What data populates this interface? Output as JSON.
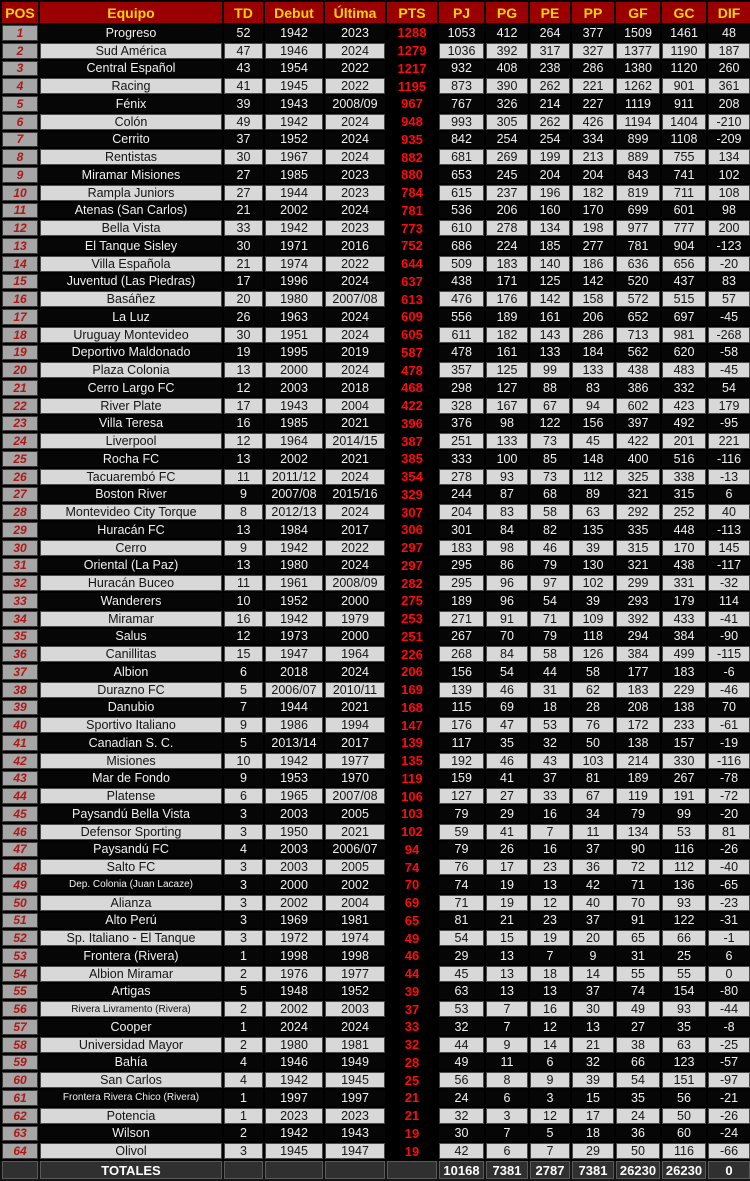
{
  "colors": {
    "header_bg": "#9B0000",
    "header_text": "#FFD400",
    "pos_bg": "#A6A6A6",
    "pos_text": "#B01818",
    "row_odd_bg": "#060606",
    "row_odd_text": "#F2F2F2",
    "row_even_bg": "#D8D8D8",
    "row_even_text": "#141414",
    "pts_bg": "#000000",
    "pts_text": "#FF0B0B",
    "totals_row_bg": "#141414",
    "totals_cell_bg": "#303030",
    "totals_text": "#FFFFFF"
  },
  "chart_data": {
    "type": "table",
    "columns": [
      {
        "key": "pos",
        "label": "POS",
        "width": 38
      },
      {
        "key": "equipo",
        "label": "Equipo",
        "width": 184
      },
      {
        "key": "td",
        "label": "TD",
        "width": 41
      },
      {
        "key": "debut",
        "label": "Debut",
        "width": 60
      },
      {
        "key": "ultima",
        "label": "Última",
        "width": 62
      },
      {
        "key": "pts",
        "label": "PTS",
        "width": 52
      },
      {
        "key": "pj",
        "label": "PJ",
        "width": 47
      },
      {
        "key": "pg",
        "label": "PG",
        "width": 44
      },
      {
        "key": "pe",
        "label": "PE",
        "width": 42
      },
      {
        "key": "pp",
        "label": "PP",
        "width": 44
      },
      {
        "key": "gf",
        "label": "GF",
        "width": 46
      },
      {
        "key": "gc",
        "label": "GC",
        "width": 46
      },
      {
        "key": "dif",
        "label": "DIF",
        "width": 44
      }
    ],
    "rows": [
      [
        "1",
        "Progreso",
        "52",
        "1942",
        "2023",
        "1288",
        "1053",
        "412",
        "264",
        "377",
        "1509",
        "1461",
        "48"
      ],
      [
        "2",
        "Sud América",
        "47",
        "1946",
        "2024",
        "1279",
        "1036",
        "392",
        "317",
        "327",
        "1377",
        "1190",
        "187"
      ],
      [
        "3",
        "Central Español",
        "43",
        "1954",
        "2022",
        "1217",
        "932",
        "408",
        "238",
        "286",
        "1380",
        "1120",
        "260"
      ],
      [
        "4",
        "Racing",
        "41",
        "1945",
        "2022",
        "1195",
        "873",
        "390",
        "262",
        "221",
        "1262",
        "901",
        "361"
      ],
      [
        "5",
        "Fénix",
        "39",
        "1943",
        "2008/09",
        "967",
        "767",
        "326",
        "214",
        "227",
        "1119",
        "911",
        "208"
      ],
      [
        "6",
        "Colón",
        "49",
        "1942",
        "2024",
        "948",
        "993",
        "305",
        "262",
        "426",
        "1194",
        "1404",
        "-210"
      ],
      [
        "7",
        "Cerrito",
        "37",
        "1952",
        "2024",
        "935",
        "842",
        "254",
        "254",
        "334",
        "899",
        "1108",
        "-209"
      ],
      [
        "8",
        "Rentistas",
        "30",
        "1967",
        "2024",
        "882",
        "681",
        "269",
        "199",
        "213",
        "889",
        "755",
        "134"
      ],
      [
        "9",
        "Miramar Misiones",
        "27",
        "1985",
        "2023",
        "880",
        "653",
        "245",
        "204",
        "204",
        "843",
        "741",
        "102"
      ],
      [
        "10",
        "Rampla Juniors",
        "27",
        "1944",
        "2023",
        "784",
        "615",
        "237",
        "196",
        "182",
        "819",
        "711",
        "108"
      ],
      [
        "11",
        "Atenas (San Carlos)",
        "21",
        "2002",
        "2024",
        "781",
        "536",
        "206",
        "160",
        "170",
        "699",
        "601",
        "98"
      ],
      [
        "12",
        "Bella Vista",
        "33",
        "1942",
        "2023",
        "773",
        "610",
        "278",
        "134",
        "198",
        "977",
        "777",
        "200"
      ],
      [
        "13",
        "El Tanque Sisley",
        "30",
        "1971",
        "2016",
        "752",
        "686",
        "224",
        "185",
        "277",
        "781",
        "904",
        "-123"
      ],
      [
        "14",
        "Villa Española",
        "21",
        "1974",
        "2022",
        "644",
        "509",
        "183",
        "140",
        "186",
        "636",
        "656",
        "-20"
      ],
      [
        "15",
        "Juventud (Las Piedras)",
        "17",
        "1996",
        "2024",
        "637",
        "438",
        "171",
        "125",
        "142",
        "520",
        "437",
        "83"
      ],
      [
        "16",
        "Basáñez",
        "20",
        "1980",
        "2007/08",
        "613",
        "476",
        "176",
        "142",
        "158",
        "572",
        "515",
        "57"
      ],
      [
        "17",
        "La Luz",
        "26",
        "1963",
        "2024",
        "609",
        "556",
        "189",
        "161",
        "206",
        "652",
        "697",
        "-45"
      ],
      [
        "18",
        "Uruguay Montevideo",
        "30",
        "1951",
        "2024",
        "605",
        "611",
        "182",
        "143",
        "286",
        "713",
        "981",
        "-268"
      ],
      [
        "19",
        "Deportivo Maldonado",
        "19",
        "1995",
        "2019",
        "587",
        "478",
        "161",
        "133",
        "184",
        "562",
        "620",
        "-58"
      ],
      [
        "20",
        "Plaza Colonia",
        "13",
        "2000",
        "2024",
        "478",
        "357",
        "125",
        "99",
        "133",
        "438",
        "483",
        "-45"
      ],
      [
        "21",
        "Cerro Largo FC",
        "12",
        "2003",
        "2018",
        "468",
        "298",
        "127",
        "88",
        "83",
        "386",
        "332",
        "54"
      ],
      [
        "22",
        "River Plate",
        "17",
        "1943",
        "2004",
        "422",
        "328",
        "167",
        "67",
        "94",
        "602",
        "423",
        "179"
      ],
      [
        "23",
        "Villa Teresa",
        "16",
        "1985",
        "2021",
        "396",
        "376",
        "98",
        "122",
        "156",
        "397",
        "492",
        "-95"
      ],
      [
        "24",
        "Liverpool",
        "12",
        "1964",
        "2014/15",
        "387",
        "251",
        "133",
        "73",
        "45",
        "422",
        "201",
        "221"
      ],
      [
        "25",
        "Rocha FC",
        "13",
        "2002",
        "2021",
        "385",
        "333",
        "100",
        "85",
        "148",
        "400",
        "516",
        "-116"
      ],
      [
        "26",
        "Tacuarembó FC",
        "11",
        "2011/12",
        "2024",
        "354",
        "278",
        "93",
        "73",
        "112",
        "325",
        "338",
        "-13"
      ],
      [
        "27",
        "Boston River",
        "9",
        "2007/08",
        "2015/16",
        "329",
        "244",
        "87",
        "68",
        "89",
        "321",
        "315",
        "6"
      ],
      [
        "28",
        "Montevideo City Torque",
        "8",
        "2012/13",
        "2024",
        "307",
        "204",
        "83",
        "58",
        "63",
        "292",
        "252",
        "40"
      ],
      [
        "29",
        "Huracán FC",
        "13",
        "1984",
        "2017",
        "306",
        "301",
        "84",
        "82",
        "135",
        "335",
        "448",
        "-113"
      ],
      [
        "30",
        "Cerro",
        "9",
        "1942",
        "2022",
        "297",
        "183",
        "98",
        "46",
        "39",
        "315",
        "170",
        "145"
      ],
      [
        "31",
        "Oriental (La Paz)",
        "13",
        "1980",
        "2024",
        "297",
        "295",
        "86",
        "79",
        "130",
        "321",
        "438",
        "-117"
      ],
      [
        "32",
        "Huracán Buceo",
        "11",
        "1961",
        "2008/09",
        "282",
        "295",
        "96",
        "97",
        "102",
        "299",
        "331",
        "-32"
      ],
      [
        "33",
        "Wanderers",
        "10",
        "1952",
        "2000",
        "275",
        "189",
        "96",
        "54",
        "39",
        "293",
        "179",
        "114"
      ],
      [
        "34",
        "Miramar",
        "16",
        "1942",
        "1979",
        "253",
        "271",
        "91",
        "71",
        "109",
        "392",
        "433",
        "-41"
      ],
      [
        "35",
        "Salus",
        "12",
        "1973",
        "2000",
        "251",
        "267",
        "70",
        "79",
        "118",
        "294",
        "384",
        "-90"
      ],
      [
        "36",
        "Canillitas",
        "15",
        "1947",
        "1964",
        "226",
        "268",
        "84",
        "58",
        "126",
        "384",
        "499",
        "-115"
      ],
      [
        "37",
        "Albion",
        "6",
        "2018",
        "2024",
        "206",
        "156",
        "54",
        "44",
        "58",
        "177",
        "183",
        "-6"
      ],
      [
        "38",
        "Durazno FC",
        "5",
        "2006/07",
        "2010/11",
        "169",
        "139",
        "46",
        "31",
        "62",
        "183",
        "229",
        "-46"
      ],
      [
        "39",
        "Danubio",
        "7",
        "1944",
        "2021",
        "168",
        "115",
        "69",
        "18",
        "28",
        "208",
        "138",
        "70"
      ],
      [
        "40",
        "Sportivo Italiano",
        "9",
        "1986",
        "1994",
        "147",
        "176",
        "47",
        "53",
        "76",
        "172",
        "233",
        "-61"
      ],
      [
        "41",
        "Canadian S. C.",
        "5",
        "2013/14",
        "2017",
        "139",
        "117",
        "35",
        "32",
        "50",
        "138",
        "157",
        "-19"
      ],
      [
        "42",
        "Misiones",
        "10",
        "1942",
        "1977",
        "135",
        "192",
        "46",
        "43",
        "103",
        "214",
        "330",
        "-116"
      ],
      [
        "43",
        "Mar de Fondo",
        "9",
        "1953",
        "1970",
        "119",
        "159",
        "41",
        "37",
        "81",
        "189",
        "267",
        "-78"
      ],
      [
        "44",
        "Platense",
        "6",
        "1965",
        "2007/08",
        "106",
        "127",
        "27",
        "33",
        "67",
        "119",
        "191",
        "-72"
      ],
      [
        "45",
        "Paysandú Bella Vista",
        "3",
        "2003",
        "2005",
        "103",
        "79",
        "29",
        "16",
        "34",
        "79",
        "99",
        "-20"
      ],
      [
        "46",
        "Defensor Sporting",
        "3",
        "1950",
        "2021",
        "102",
        "59",
        "41",
        "7",
        "11",
        "134",
        "53",
        "81"
      ],
      [
        "47",
        "Paysandú FC",
        "4",
        "2003",
        "2006/07",
        "94",
        "79",
        "26",
        "16",
        "37",
        "90",
        "116",
        "-26"
      ],
      [
        "48",
        "Salto FC",
        "3",
        "2003",
        "2005",
        "74",
        "76",
        "17",
        "23",
        "36",
        "72",
        "112",
        "-40"
      ],
      [
        "49",
        "Dep. Colonia (Juan Lacaze)",
        "3",
        "2000",
        "2002",
        "70",
        "74",
        "19",
        "13",
        "42",
        "71",
        "136",
        "-65"
      ],
      [
        "50",
        "Alianza",
        "3",
        "2002",
        "2004",
        "69",
        "71",
        "19",
        "12",
        "40",
        "70",
        "93",
        "-23"
      ],
      [
        "51",
        "Alto Perú",
        "3",
        "1969",
        "1981",
        "65",
        "81",
        "21",
        "23",
        "37",
        "91",
        "122",
        "-31"
      ],
      [
        "52",
        "Sp. Italiano - El Tanque",
        "3",
        "1972",
        "1974",
        "49",
        "54",
        "15",
        "19",
        "20",
        "65",
        "66",
        "-1"
      ],
      [
        "53",
        "Frontera (Rivera)",
        "1",
        "1998",
        "1998",
        "46",
        "29",
        "13",
        "7",
        "9",
        "31",
        "25",
        "6"
      ],
      [
        "54",
        "Albion Miramar",
        "2",
        "1976",
        "1977",
        "44",
        "45",
        "13",
        "18",
        "14",
        "55",
        "55",
        "0"
      ],
      [
        "55",
        "Artigas",
        "5",
        "1948",
        "1952",
        "39",
        "63",
        "13",
        "13",
        "37",
        "74",
        "154",
        "-80"
      ],
      [
        "56",
        "Rivera Livramento (Rivera)",
        "2",
        "2002",
        "2003",
        "37",
        "53",
        "7",
        "16",
        "30",
        "49",
        "93",
        "-44"
      ],
      [
        "57",
        "Cooper",
        "1",
        "2024",
        "2024",
        "33",
        "32",
        "7",
        "12",
        "13",
        "27",
        "35",
        "-8"
      ],
      [
        "58",
        "Universidad Mayor",
        "2",
        "1980",
        "1981",
        "32",
        "44",
        "9",
        "14",
        "21",
        "38",
        "63",
        "-25"
      ],
      [
        "59",
        "Bahía",
        "4",
        "1946",
        "1949",
        "28",
        "49",
        "11",
        "6",
        "32",
        "66",
        "123",
        "-57"
      ],
      [
        "60",
        "San Carlos",
        "4",
        "1942",
        "1945",
        "25",
        "56",
        "8",
        "9",
        "39",
        "54",
        "151",
        "-97"
      ],
      [
        "61",
        "Frontera Rivera Chico (Rivera)",
        "1",
        "1997",
        "1997",
        "21",
        "24",
        "6",
        "3",
        "15",
        "35",
        "56",
        "-21"
      ],
      [
        "62",
        "Potencia",
        "1",
        "2023",
        "2023",
        "21",
        "32",
        "3",
        "12",
        "17",
        "24",
        "50",
        "-26"
      ],
      [
        "63",
        "Wilson",
        "2",
        "1942",
        "1943",
        "19",
        "30",
        "7",
        "5",
        "18",
        "36",
        "60",
        "-24"
      ],
      [
        "64",
        "Olivol",
        "3",
        "1945",
        "1947",
        "19",
        "42",
        "6",
        "7",
        "29",
        "50",
        "116",
        "-66"
      ]
    ],
    "totals_row": [
      "",
      "TOTALES",
      "",
      "",
      "",
      "",
      "10168",
      "7381",
      "2787",
      "7381",
      "26230",
      "26230",
      "0"
    ],
    "layout_hints": {
      "row_striping": "odd rows black with white text, even rows light gray with black text",
      "pts_column": "always black background with red bold values",
      "pos_column": "gray background with dark red italic numbers",
      "grid": true,
      "legend": "none"
    }
  }
}
